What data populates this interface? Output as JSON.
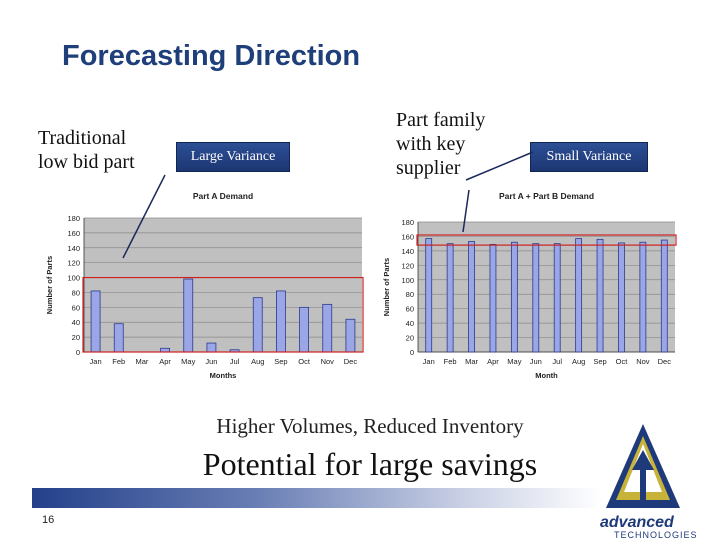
{
  "slide": {
    "title": "Forecasting Direction",
    "callouts": {
      "left_line1": "Traditional",
      "left_line2": "low bid part",
      "left_box": "Large Variance",
      "right_line1": "Part family",
      "right_line2": "with key",
      "right_line3": "supplier",
      "right_box": "Small Variance"
    },
    "caption1": "Higher Volumes, Reduced Inventory",
    "caption2": "Potential for large savings",
    "page_number": "16",
    "logo": {
      "line1": "advanced",
      "line2": "TECHNOLOGIES"
    }
  },
  "colors": {
    "title": "#1f3f7a",
    "bar_fill": "#9aa6e6",
    "bar_stroke": "#2b3a8c",
    "plot_bg": "#c0c0c0",
    "highlight": "#cc2222",
    "callout_box": "#2d4f95"
  },
  "chart_data": [
    {
      "type": "bar",
      "title": "Part A Demand",
      "xlabel": "Months",
      "ylabel": "Number of Parts",
      "categories": [
        "Jan",
        "Feb",
        "Mar",
        "Apr",
        "May",
        "Jun",
        "Jul",
        "Aug",
        "Sep",
        "Oct",
        "Nov",
        "Dec"
      ],
      "values": [
        82,
        38,
        0,
        5,
        98,
        12,
        3,
        73,
        82,
        60,
        64,
        44
      ],
      "ylim": [
        0,
        180
      ],
      "yticks": [
        0,
        20,
        40,
        60,
        80,
        100,
        120,
        140,
        160,
        180
      ],
      "grid": true,
      "highlight_range": [
        0,
        100
      ]
    },
    {
      "type": "bar",
      "title": "Part A + Part B Demand",
      "xlabel": "Month",
      "ylabel": "Number of Parts",
      "categories": [
        "Jan",
        "Feb",
        "Mar",
        "Apr",
        "May",
        "Jun",
        "Jul",
        "Aug",
        "Sep",
        "Oct",
        "Nov",
        "Dec"
      ],
      "values": [
        157,
        150,
        153,
        149,
        152,
        150,
        150,
        157,
        156,
        151,
        152,
        155
      ],
      "ylim": [
        0,
        180
      ],
      "yticks": [
        0,
        20,
        40,
        60,
        80,
        100,
        120,
        140,
        160,
        180
      ],
      "grid": true,
      "highlight_range": [
        148,
        162
      ]
    }
  ]
}
